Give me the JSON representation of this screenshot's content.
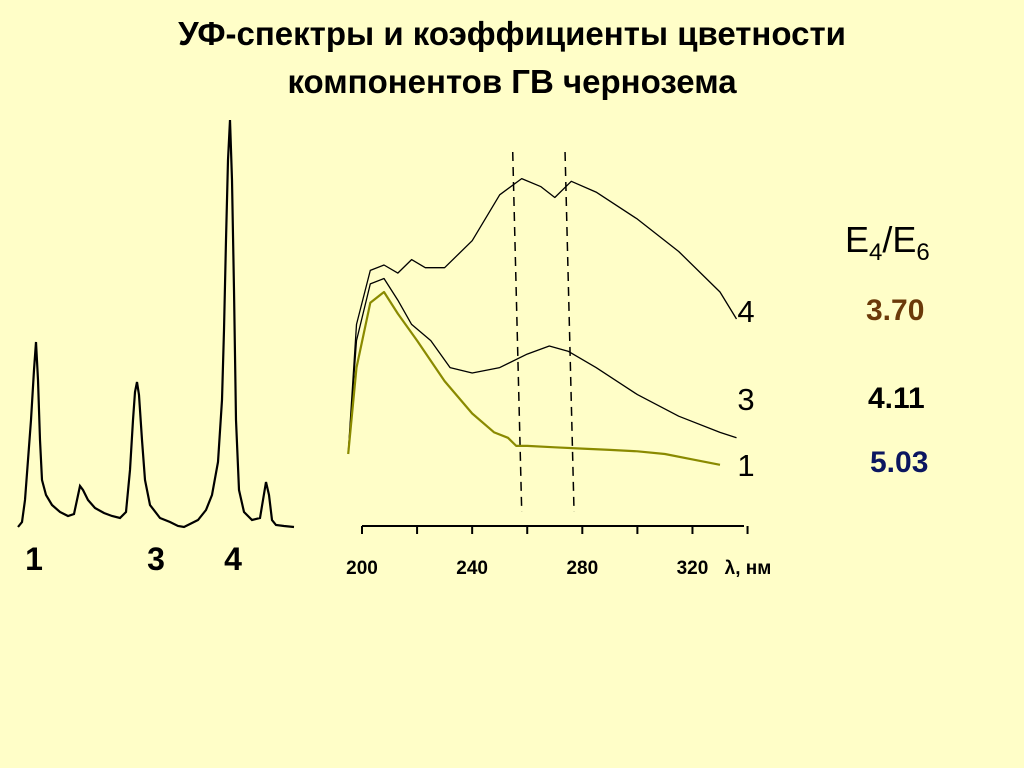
{
  "title_line1": "УФ-спектры и коэффициенты цветности",
  "title_line2": "компонентов ГВ чернозема",
  "colors": {
    "background": "#fffec8",
    "curve_1": "#8a8a00",
    "curve_3": "#000000",
    "curve_4": "#000000",
    "value_4": "#6b3a0a",
    "value_3": "#000000",
    "value_1": "#0b1660"
  },
  "chart_data": [
    {
      "type": "line",
      "description_kind": "chromatogram",
      "peak_labels": [
        "1",
        "3",
        "4"
      ],
      "axes": "none"
    },
    {
      "type": "line",
      "xlabel": "λ, нм",
      "x_ticks": [
        "200",
        "240",
        "280",
        "320"
      ],
      "xlim": [
        195,
        345
      ],
      "dashed_lines_x": [
        258,
        277
      ],
      "series": [
        {
          "name": "4",
          "x": [
            195,
            198,
            203,
            208,
            213,
            218,
            223,
            230,
            240,
            250,
            258,
            265,
            270,
            276,
            285,
            300,
            315,
            330,
            336
          ],
          "y": [
            0.3,
            0.78,
            0.98,
            1.0,
            0.97,
            1.02,
            0.99,
            0.99,
            1.09,
            1.26,
            1.32,
            1.29,
            1.25,
            1.31,
            1.27,
            1.17,
            1.05,
            0.9,
            0.8
          ]
        },
        {
          "name": "3",
          "x": [
            195,
            198,
            203,
            208,
            213,
            218,
            225,
            232,
            240,
            250,
            260,
            268,
            275,
            285,
            300,
            315,
            330,
            336
          ],
          "y": [
            0.3,
            0.72,
            0.93,
            0.95,
            0.87,
            0.78,
            0.72,
            0.62,
            0.6,
            0.62,
            0.67,
            0.7,
            0.68,
            0.62,
            0.52,
            0.44,
            0.38,
            0.36
          ]
        },
        {
          "name": "1",
          "x": [
            195,
            198,
            203,
            208,
            213,
            220,
            230,
            240,
            248,
            253,
            256,
            260,
            270,
            280,
            290,
            300,
            310,
            320,
            330
          ],
          "y": [
            0.3,
            0.62,
            0.86,
            0.9,
            0.82,
            0.72,
            0.57,
            0.45,
            0.38,
            0.36,
            0.33,
            0.33,
            0.325,
            0.32,
            0.315,
            0.31,
            0.3,
            0.28,
            0.26
          ]
        }
      ],
      "curve_labels": [
        "4",
        "3",
        "1"
      ]
    }
  ],
  "ratio_header": {
    "main1": "E",
    "sub1": "4",
    "slash": "/",
    "main2": "E",
    "sub2": "6"
  },
  "ratios": [
    {
      "curve": "4",
      "value": "3.70"
    },
    {
      "curve": "3",
      "value": "4.11"
    },
    {
      "curve": "1",
      "value": "5.03"
    }
  ]
}
